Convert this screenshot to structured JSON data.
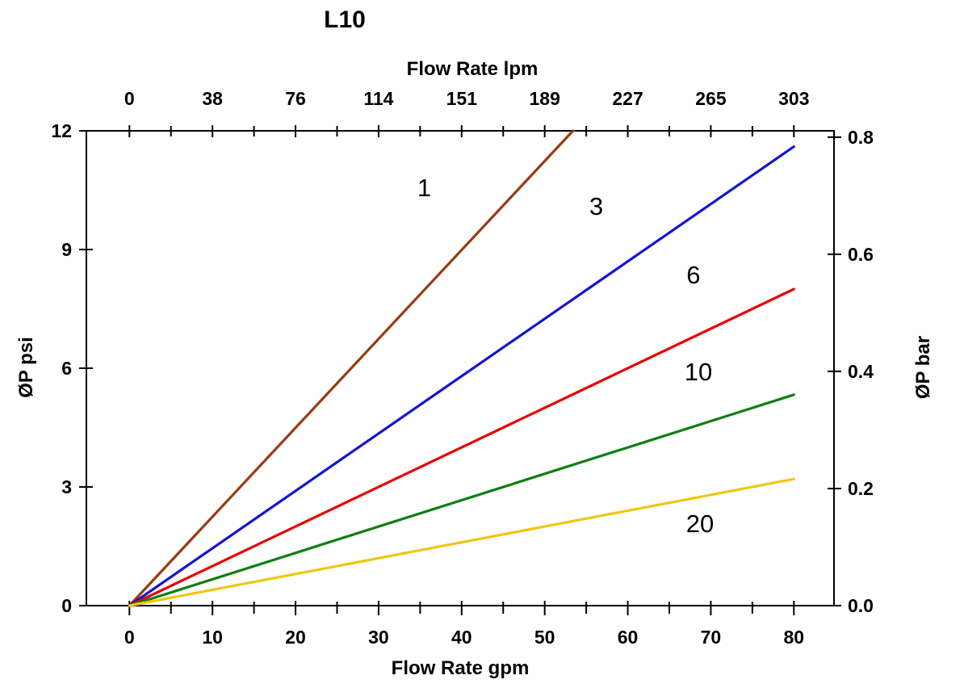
{
  "chart_data": {
    "type": "line",
    "title": "L10",
    "top_axis": {
      "label": "Flow Rate lpm",
      "tick_labels": [
        "0",
        "38",
        "76",
        "114",
        "151",
        "189",
        "227",
        "265",
        "303"
      ],
      "tick_positions_gpm": [
        0,
        10,
        20,
        30,
        40,
        50,
        60,
        70,
        80
      ],
      "minor_tick_step_gpm": 5
    },
    "bottom_axis": {
      "label": "Flow Rate gpm",
      "tick_labels": [
        "0",
        "10",
        "20",
        "30",
        "40",
        "50",
        "60",
        "70",
        "80"
      ],
      "tick_positions_gpm": [
        0,
        10,
        20,
        30,
        40,
        50,
        60,
        70,
        80
      ],
      "minor_tick_step_gpm": 5,
      "plotted_range_gpm": [
        -5.15,
        84.85
      ]
    },
    "left_axis": {
      "label": "ØP psi",
      "tick_labels": [
        "0",
        "3",
        "6",
        "9",
        "12"
      ],
      "tick_values_psi": [
        0,
        3,
        6,
        9,
        12
      ],
      "range_psi": [
        0,
        12
      ]
    },
    "right_axis": {
      "label": "ØP bar",
      "tick_labels": [
        "0.0",
        "0.2",
        "0.4",
        "0.6",
        "0.8"
      ],
      "tick_values_bar": [
        0.0,
        0.2,
        0.4,
        0.6,
        0.8
      ],
      "range_bar": [
        0,
        0.8
      ],
      "top_tick_psi_equivalent": 11.84
    },
    "grid": "off",
    "series": [
      {
        "name": "1",
        "color": "#963C10",
        "points_gpm_psi": [
          [
            0,
            0
          ],
          [
            53.4,
            12.0
          ]
        ],
        "psi_per_gpm": 0.225
      },
      {
        "name": "3",
        "color": "#1414D2",
        "points_gpm_psi": [
          [
            0,
            0
          ],
          [
            80,
            11.6
          ]
        ],
        "psi_per_gpm": 0.145
      },
      {
        "name": "6",
        "color": "#E80000",
        "points_gpm_psi": [
          [
            0,
            0
          ],
          [
            80,
            8.0
          ]
        ],
        "psi_per_gpm": 0.1
      },
      {
        "name": "10",
        "color": "#0E7E12",
        "points_gpm_psi": [
          [
            0,
            0
          ],
          [
            80,
            5.33
          ]
        ],
        "psi_per_gpm": 0.067
      },
      {
        "name": "20",
        "color": "#EFC617",
        "points_gpm_psi": [
          [
            0,
            0
          ],
          [
            80,
            3.2
          ]
        ],
        "psi_per_gpm": 0.04
      }
    ],
    "curve_labels": [
      {
        "text": "1",
        "gpm": 35.5,
        "psi": 10.57
      },
      {
        "text": "3",
        "gpm": 56.2,
        "psi": 10.1
      },
      {
        "text": "6",
        "gpm": 67.9,
        "psi": 8.37
      },
      {
        "text": "10",
        "gpm": 68.5,
        "psi": 5.92
      },
      {
        "text": "20",
        "gpm": 68.7,
        "psi": 2.08
      }
    ],
    "axis_color": "#000000",
    "background_color": "#FFFFFF"
  }
}
